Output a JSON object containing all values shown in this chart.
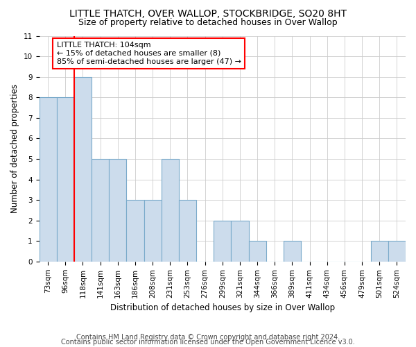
{
  "title": "LITTLE THATCH, OVER WALLOP, STOCKBRIDGE, SO20 8HT",
  "subtitle": "Size of property relative to detached houses in Over Wallop",
  "xlabel": "Distribution of detached houses by size in Over Wallop",
  "ylabel": "Number of detached properties",
  "categories": [
    "73sqm",
    "96sqm",
    "118sqm",
    "141sqm",
    "163sqm",
    "186sqm",
    "208sqm",
    "231sqm",
    "253sqm",
    "276sqm",
    "299sqm",
    "321sqm",
    "344sqm",
    "366sqm",
    "389sqm",
    "411sqm",
    "434sqm",
    "456sqm",
    "479sqm",
    "501sqm",
    "524sqm"
  ],
  "values": [
    8,
    8,
    9,
    5,
    5,
    3,
    3,
    5,
    3,
    0,
    2,
    2,
    1,
    0,
    1,
    0,
    0,
    0,
    0,
    1,
    1
  ],
  "bar_color": "#ccdcec",
  "bar_edge_color": "#7aaaca",
  "marker_line_color": "red",
  "annotation_text_line1": "LITTLE THATCH: 104sqm",
  "annotation_text_line2": "← 15% of detached houses are smaller (8)",
  "annotation_text_line3": "85% of semi-detached houses are larger (47) →",
  "annotation_box_color": "white",
  "annotation_box_edge_color": "red",
  "ylim": [
    0,
    11
  ],
  "yticks": [
    0,
    1,
    2,
    3,
    4,
    5,
    6,
    7,
    8,
    9,
    10,
    11
  ],
  "footer1": "Contains HM Land Registry data © Crown copyright and database right 2024.",
  "footer2": "Contains public sector information licensed under the Open Government Licence v3.0.",
  "background_color": "#ffffff",
  "grid_color": "#cccccc",
  "title_fontsize": 10,
  "subtitle_fontsize": 9,
  "axis_label_fontsize": 8.5,
  "tick_fontsize": 7.5,
  "annotation_fontsize": 8,
  "footer_fontsize": 7
}
